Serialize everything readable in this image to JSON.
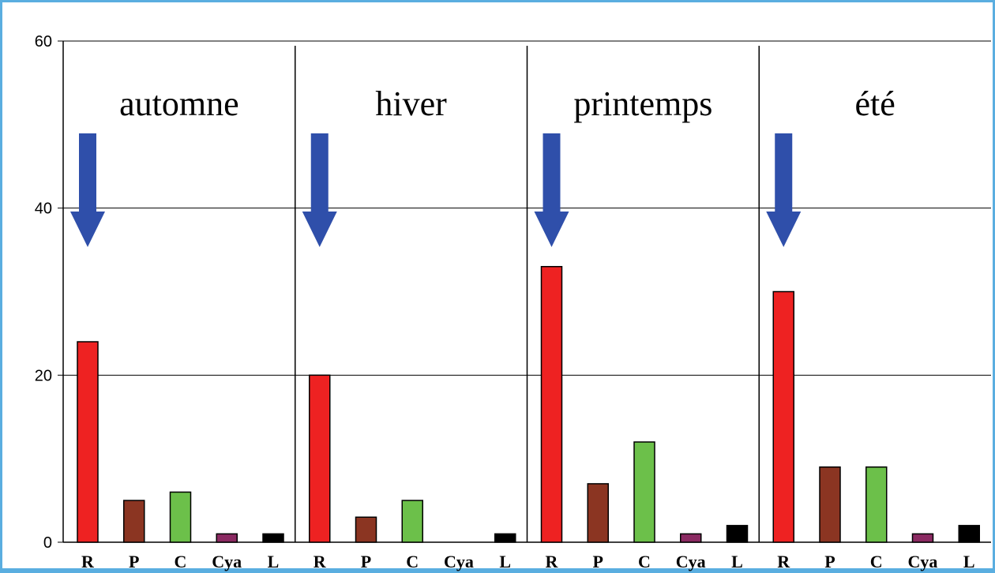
{
  "chart_data": {
    "type": "bar",
    "ylim": [
      0,
      60
    ],
    "yticks": [
      0,
      20,
      40,
      60
    ],
    "grid": true,
    "colors": {
      "R": "#ee2222",
      "P": "#8b3522",
      "C": "#6cc04a",
      "Cya": "#8b2a62",
      "L": "#000000",
      "arrow": "#2f4faa"
    },
    "groups": [
      {
        "label": "automne",
        "categories": [
          "R",
          "P",
          "C",
          "Cya",
          "L"
        ],
        "values": [
          24,
          5,
          6,
          1,
          1
        ]
      },
      {
        "label": "hiver",
        "categories": [
          "R",
          "P",
          "C",
          "Cya",
          "L"
        ],
        "values": [
          20,
          3,
          5,
          0,
          1
        ]
      },
      {
        "label": "printemps",
        "categories": [
          "R",
          "P",
          "C",
          "Cya",
          "L"
        ],
        "values": [
          33,
          7,
          12,
          1,
          2
        ]
      },
      {
        "label": "été",
        "categories": [
          "R",
          "P",
          "C",
          "Cya",
          "L"
        ],
        "values": [
          30,
          9,
          9,
          1,
          2
        ]
      }
    ]
  }
}
